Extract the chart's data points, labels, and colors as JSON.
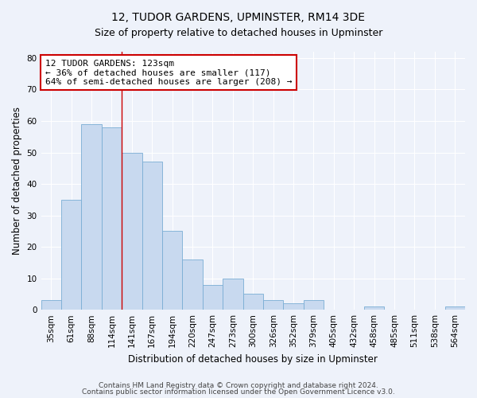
{
  "title": "12, TUDOR GARDENS, UPMINSTER, RM14 3DE",
  "subtitle": "Size of property relative to detached houses in Upminster",
  "xlabel": "Distribution of detached houses by size in Upminster",
  "ylabel": "Number of detached properties",
  "categories": [
    "35sqm",
    "61sqm",
    "88sqm",
    "114sqm",
    "141sqm",
    "167sqm",
    "194sqm",
    "220sqm",
    "247sqm",
    "273sqm",
    "300sqm",
    "326sqm",
    "352sqm",
    "379sqm",
    "405sqm",
    "432sqm",
    "458sqm",
    "485sqm",
    "511sqm",
    "538sqm",
    "564sqm"
  ],
  "values": [
    3,
    35,
    59,
    58,
    50,
    47,
    25,
    16,
    8,
    10,
    5,
    3,
    2,
    3,
    0,
    0,
    1,
    0,
    0,
    0,
    1
  ],
  "bar_color": "#c8d9ef",
  "bar_edge_color": "#7aadd4",
  "property_line_x": 3.5,
  "annotation_line1": "12 TUDOR GARDENS: 123sqm",
  "annotation_line2": "← 36% of detached houses are smaller (117)",
  "annotation_line3": "64% of semi-detached houses are larger (208) →",
  "annotation_box_color": "#ffffff",
  "annotation_box_edge": "#cc0000",
  "vline_color": "#cc0000",
  "ylim": [
    0,
    82
  ],
  "yticks": [
    0,
    10,
    20,
    30,
    40,
    50,
    60,
    70,
    80
  ],
  "footer1": "Contains HM Land Registry data © Crown copyright and database right 2024.",
  "footer2": "Contains public sector information licensed under the Open Government Licence v3.0.",
  "bg_color": "#eef2fa",
  "grid_color": "#ffffff",
  "title_fontsize": 10,
  "subtitle_fontsize": 9,
  "axis_label_fontsize": 8.5,
  "tick_fontsize": 7.5,
  "annotation_fontsize": 8,
  "footer_fontsize": 6.5
}
